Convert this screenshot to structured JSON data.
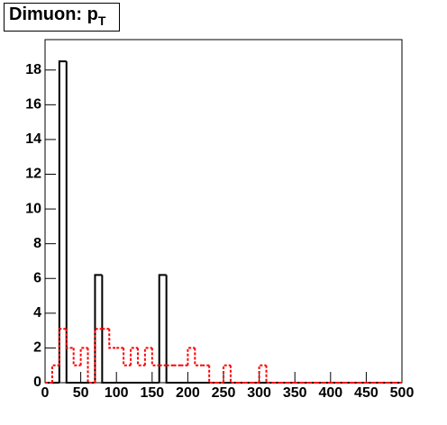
{
  "chart_data": {
    "type": "histogram",
    "title": "Dimuon: p",
    "title_subscript": "T",
    "bins": [
      0,
      10,
      20,
      30,
      40,
      50,
      60,
      70,
      80,
      90,
      100,
      110,
      120,
      130,
      140,
      150,
      160,
      170,
      180,
      190,
      200,
      210,
      220,
      230,
      240,
      250,
      260,
      270,
      280,
      290,
      300,
      310,
      320,
      330,
      340,
      350,
      360,
      370,
      380,
      390,
      400,
      410,
      420,
      430,
      440,
      450,
      460,
      470,
      480,
      490,
      500
    ],
    "series": [
      {
        "color": "#000000",
        "line_style": "solid",
        "values": [
          0,
          0,
          18.5,
          0,
          0,
          0,
          0,
          6.2,
          0,
          0,
          0,
          0,
          0,
          0,
          0,
          0,
          6.2,
          0,
          0,
          0,
          0,
          0,
          0,
          0,
          0,
          0,
          0,
          0,
          0,
          0,
          0,
          0,
          0,
          0,
          0,
          0,
          0,
          0,
          0,
          0,
          0,
          0,
          0,
          0,
          0,
          0,
          0,
          0,
          0,
          0
        ]
      },
      {
        "color": "#ff0000",
        "line_style": "dashed",
        "values": [
          0,
          1,
          3.1,
          2,
          1,
          2,
          0,
          3.1,
          3.1,
          2,
          2,
          1,
          2,
          1,
          2,
          1,
          1,
          1,
          1,
          1,
          2,
          1,
          1,
          0,
          0,
          1,
          0,
          0,
          0,
          0,
          1,
          0,
          0,
          0,
          0,
          0,
          0,
          0,
          0,
          0,
          0,
          0,
          0,
          0,
          0,
          0,
          0,
          0,
          0,
          0
        ]
      }
    ],
    "xlim": [
      0,
      500
    ],
    "xticks": [
      0,
      50,
      100,
      150,
      200,
      250,
      300,
      350,
      400,
      450,
      500
    ],
    "ylim": [
      0,
      19.75
    ],
    "yticks": [
      0,
      2,
      4,
      6,
      8,
      10,
      12,
      14,
      16,
      18
    ]
  }
}
